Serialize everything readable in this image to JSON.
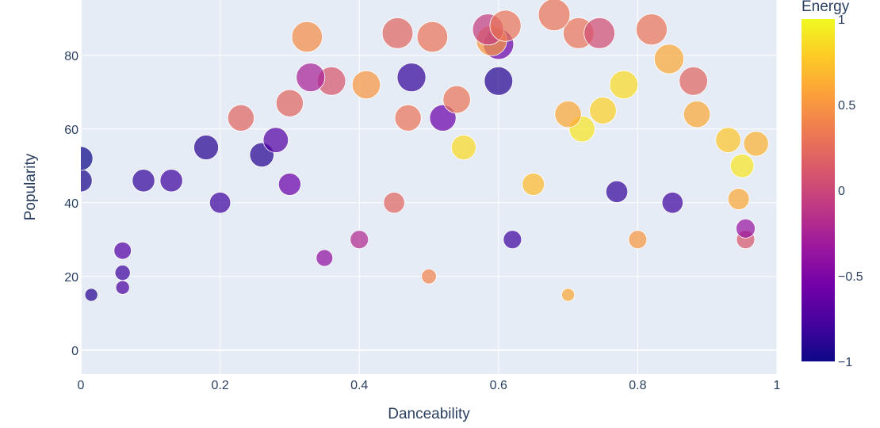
{
  "chart_data": {
    "type": "scatter",
    "title": "",
    "xlabel": "Danceability",
    "ylabel": "Popularity",
    "xlim": [
      0,
      1.0
    ],
    "ylim": [
      -6.5,
      95
    ],
    "x_ticks": [
      0,
      0.2,
      0.4,
      0.6,
      0.8,
      1.0
    ],
    "x_tick_labels": [
      "0",
      "0.2",
      "0.4",
      "0.6",
      "0.8",
      "1"
    ],
    "y_ticks": [
      0,
      20,
      40,
      60,
      80
    ],
    "y_tick_labels": [
      "0",
      "20",
      "40",
      "60",
      "80"
    ],
    "grid": true,
    "marker_size_encoding": "Popularity",
    "colorbar": {
      "title": "Energy",
      "range": [
        -1,
        1
      ],
      "ticks": [
        -1,
        -0.5,
        0,
        0.5,
        1
      ],
      "tick_labels": [
        "−1",
        "−0.5",
        "0",
        "0.5",
        "1"
      ],
      "colorscale": [
        "#0d0887",
        "#46039f",
        "#7201a8",
        "#9c179e",
        "#bd3786",
        "#d8576b",
        "#ed7953",
        "#fb9f3a",
        "#fdca26",
        "#f0f921"
      ]
    },
    "points": [
      {
        "x": 0.0,
        "y": 52,
        "energy": -1.0
      },
      {
        "x": 0.0,
        "y": 46,
        "energy": -0.95
      },
      {
        "x": 0.015,
        "y": 15,
        "energy": -0.9
      },
      {
        "x": 0.18,
        "y": 55,
        "energy": -0.9
      },
      {
        "x": 0.325,
        "y": 85,
        "energy": 0.45
      },
      {
        "x": 0.33,
        "y": 74,
        "energy": -0.25
      },
      {
        "x": 0.36,
        "y": 73,
        "energy": 0.1
      },
      {
        "x": 0.41,
        "y": 72,
        "energy": 0.5
      },
      {
        "x": 0.455,
        "y": 86,
        "energy": 0.2
      },
      {
        "x": 0.475,
        "y": 74,
        "energy": -0.85
      },
      {
        "x": 0.505,
        "y": 85,
        "energy": 0.3
      },
      {
        "x": 0.585,
        "y": 87,
        "energy": -0.05
      },
      {
        "x": 0.61,
        "y": 88,
        "energy": 0.3
      },
      {
        "x": 0.68,
        "y": 91,
        "energy": 0.3
      },
      {
        "x": 0.715,
        "y": 86,
        "energy": 0.3
      },
      {
        "x": 0.745,
        "y": 86,
        "energy": 0.05
      },
      {
        "x": 0.82,
        "y": 87,
        "energy": 0.3
      },
      {
        "x": 0.845,
        "y": 79,
        "energy": 0.6
      },
      {
        "x": 0.88,
        "y": 73,
        "energy": 0.2
      },
      {
        "x": 0.885,
        "y": 64,
        "energy": 0.6
      },
      {
        "x": 0.97,
        "y": 56,
        "energy": 0.65
      },
      {
        "x": 0.95,
        "y": 50,
        "energy": 0.9
      },
      {
        "x": 0.93,
        "y": 57,
        "energy": 0.75
      },
      {
        "x": 0.945,
        "y": 41,
        "energy": 0.6
      },
      {
        "x": 0.955,
        "y": 33,
        "energy": -0.35
      },
      {
        "x": 0.955,
        "y": 30,
        "energy": 0.1
      },
      {
        "x": 0.6,
        "y": 73,
        "energy": -0.9
      },
      {
        "x": 0.6,
        "y": 83,
        "energy": -0.6
      },
      {
        "x": 0.59,
        "y": 84,
        "energy": 0.5
      },
      {
        "x": 0.54,
        "y": 68,
        "energy": 0.3
      },
      {
        "x": 0.52,
        "y": 63,
        "energy": -0.6
      },
      {
        "x": 0.47,
        "y": 63,
        "energy": 0.3
      },
      {
        "x": 0.3,
        "y": 67,
        "energy": 0.2
      },
      {
        "x": 0.23,
        "y": 63,
        "energy": 0.2
      },
      {
        "x": 0.26,
        "y": 53,
        "energy": -0.9
      },
      {
        "x": 0.28,
        "y": 57,
        "energy": -0.7
      },
      {
        "x": 0.09,
        "y": 46,
        "energy": -0.85
      },
      {
        "x": 0.13,
        "y": 46,
        "energy": -0.8
      },
      {
        "x": 0.06,
        "y": 27,
        "energy": -0.7
      },
      {
        "x": 0.06,
        "y": 21,
        "energy": -0.8
      },
      {
        "x": 0.06,
        "y": 17,
        "energy": -0.75
      },
      {
        "x": 0.7,
        "y": 64,
        "energy": 0.6
      },
      {
        "x": 0.72,
        "y": 60,
        "energy": 0.9
      },
      {
        "x": 0.75,
        "y": 65,
        "energy": 0.8
      },
      {
        "x": 0.78,
        "y": 72,
        "energy": 0.85
      },
      {
        "x": 0.55,
        "y": 55,
        "energy": 0.85
      },
      {
        "x": 0.65,
        "y": 45,
        "energy": 0.7
      },
      {
        "x": 0.45,
        "y": 40,
        "energy": 0.2
      },
      {
        "x": 0.4,
        "y": 30,
        "energy": -0.2
      },
      {
        "x": 0.35,
        "y": 25,
        "energy": -0.4
      },
      {
        "x": 0.5,
        "y": 20,
        "energy": 0.4
      },
      {
        "x": 0.7,
        "y": 15,
        "energy": 0.6
      },
      {
        "x": 0.8,
        "y": 30,
        "energy": 0.5
      },
      {
        "x": 0.85,
        "y": 40,
        "energy": -0.8
      },
      {
        "x": 0.77,
        "y": 43,
        "energy": -0.85
      },
      {
        "x": 0.62,
        "y": 30,
        "energy": -0.8
      },
      {
        "x": 0.3,
        "y": 45,
        "energy": -0.6
      },
      {
        "x": 0.2,
        "y": 40,
        "energy": -0.8
      }
    ]
  }
}
